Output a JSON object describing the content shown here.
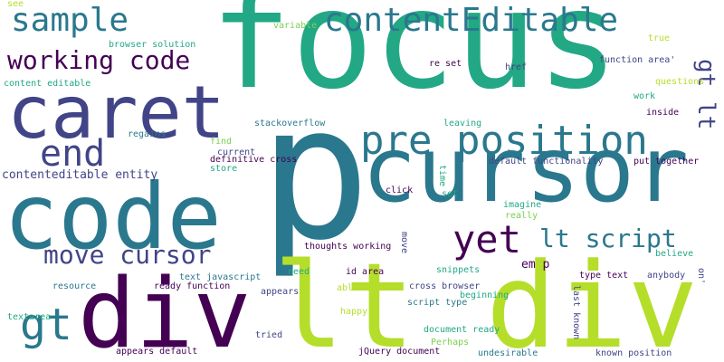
{
  "background": "#ffffff",
  "words": [
    {
      "text": "focus",
      "color": "#22a884",
      "vertical": false
    },
    {
      "text": "p",
      "color": "#2a788e",
      "vertical": false
    },
    {
      "text": "cursor",
      "color": "#2a788e",
      "vertical": false
    },
    {
      "text": "code",
      "color": "#2a788e",
      "vertical": false
    },
    {
      "text": "lt div",
      "color": "#b5de2b",
      "vertical": false
    },
    {
      "text": "div",
      "color": "#440154",
      "vertical": false
    },
    {
      "text": "caret",
      "color": "#414487",
      "vertical": false
    },
    {
      "text": "contentEditable",
      "color": "#2a788e",
      "vertical": false
    },
    {
      "text": "pre position",
      "color": "#2a788e",
      "vertical": false
    },
    {
      "text": "sample",
      "color": "#2a788e",
      "vertical": false
    },
    {
      "text": "working code",
      "color": "#440154",
      "vertical": false
    },
    {
      "text": "end",
      "color": "#414487",
      "vertical": false
    },
    {
      "text": "yet",
      "color": "#440154",
      "vertical": false
    },
    {
      "text": "lt script",
      "color": "#2a788e",
      "vertical": false
    },
    {
      "text": "move cursor",
      "color": "#414487",
      "vertical": false
    },
    {
      "text": "gt",
      "color": "#2a788e",
      "vertical": false
    },
    {
      "text": "gt lt",
      "color": "#414487",
      "vertical": true
    },
    {
      "text": "contenteditable entity",
      "color": "#414487",
      "vertical": false
    },
    {
      "text": "em p",
      "color": "#440154",
      "vertical": false
    },
    {
      "text": "stackoverflow",
      "color": "#2a788e",
      "vertical": false
    },
    {
      "text": "definitive cross",
      "color": "#440154",
      "vertical": false
    },
    {
      "text": "browser solution",
      "color": "#22a884",
      "vertical": false
    },
    {
      "text": "function area'",
      "color": "#414487",
      "vertical": false
    },
    {
      "text": "re set",
      "color": "#440154",
      "vertical": false
    },
    {
      "text": "href",
      "color": "#414487",
      "vertical": false
    },
    {
      "text": "variable",
      "color": "#7ad151",
      "vertical": false
    },
    {
      "text": "content editable",
      "color": "#22a884",
      "vertical": false
    },
    {
      "text": "regains",
      "color": "#2a788e",
      "vertical": false
    },
    {
      "text": "find",
      "color": "#7ad151",
      "vertical": false
    },
    {
      "text": "current",
      "color": "#414487",
      "vertical": false
    },
    {
      "text": "store",
      "color": "#22a884",
      "vertical": false
    },
    {
      "text": "leaving",
      "color": "#22a884",
      "vertical": false
    },
    {
      "text": "default functionality",
      "color": "#414487",
      "vertical": false
    },
    {
      "text": "put together",
      "color": "#440154",
      "vertical": false
    },
    {
      "text": "inside",
      "color": "#440154",
      "vertical": false
    },
    {
      "text": "questions",
      "color": "#b5de2b",
      "vertical": false
    },
    {
      "text": "work",
      "color": "#22a884",
      "vertical": false
    },
    {
      "text": "true",
      "color": "#b5de2b",
      "vertical": false
    },
    {
      "text": "see",
      "color": "#b5de2b",
      "vertical": false
    },
    {
      "text": "click",
      "color": "#440154",
      "vertical": false
    },
    {
      "text": "set",
      "color": "#22a884",
      "vertical": false
    },
    {
      "text": "time",
      "color": "#22a884",
      "vertical": true
    },
    {
      "text": "imagine",
      "color": "#22a884",
      "vertical": false
    },
    {
      "text": "really",
      "color": "#7ad151",
      "vertical": false
    },
    {
      "text": "thoughts working",
      "color": "#440154",
      "vertical": false
    },
    {
      "text": "move",
      "color": "#414487",
      "vertical": true
    },
    {
      "text": "believe",
      "color": "#22a884",
      "vertical": false
    },
    {
      "text": "need",
      "color": "#22a884",
      "vertical": false
    },
    {
      "text": "id area",
      "color": "#440154",
      "vertical": false
    },
    {
      "text": "snippets",
      "color": "#22a884",
      "vertical": false
    },
    {
      "text": "text javascript",
      "color": "#2a788e",
      "vertical": false
    },
    {
      "text": "ready function",
      "color": "#440154",
      "vertical": false
    },
    {
      "text": "resource",
      "color": "#2a788e",
      "vertical": false
    },
    {
      "text": "appears",
      "color": "#414487",
      "vertical": false
    },
    {
      "text": "cross browser",
      "color": "#414487",
      "vertical": false
    },
    {
      "text": "beginning",
      "color": "#22a884",
      "vertical": false
    },
    {
      "text": "type text",
      "color": "#440154",
      "vertical": false
    },
    {
      "text": "anybody",
      "color": "#414487",
      "vertical": false
    },
    {
      "text": "on'",
      "color": "#414487",
      "vertical": true
    },
    {
      "text": "able",
      "color": "#b5de2b",
      "vertical": false
    },
    {
      "text": "happy",
      "color": "#b5de2b",
      "vertical": false
    },
    {
      "text": "script type",
      "color": "#2a788e",
      "vertical": false
    },
    {
      "text": "textarea",
      "color": "#22a884",
      "vertical": false
    },
    {
      "text": "tried",
      "color": "#414487",
      "vertical": false
    },
    {
      "text": "document ready",
      "color": "#22a884",
      "vertical": false
    },
    {
      "text": "Perhaps",
      "color": "#7ad151",
      "vertical": false
    },
    {
      "text": "last known",
      "color": "#414487",
      "vertical": true
    },
    {
      "text": "appears default",
      "color": "#440154",
      "vertical": false
    },
    {
      "text": "jQuery document",
      "color": "#440154",
      "vertical": false
    },
    {
      "text": "undesirable",
      "color": "#2a788e",
      "vertical": false
    },
    {
      "text": "known position",
      "color": "#414487",
      "vertical": false
    }
  ]
}
